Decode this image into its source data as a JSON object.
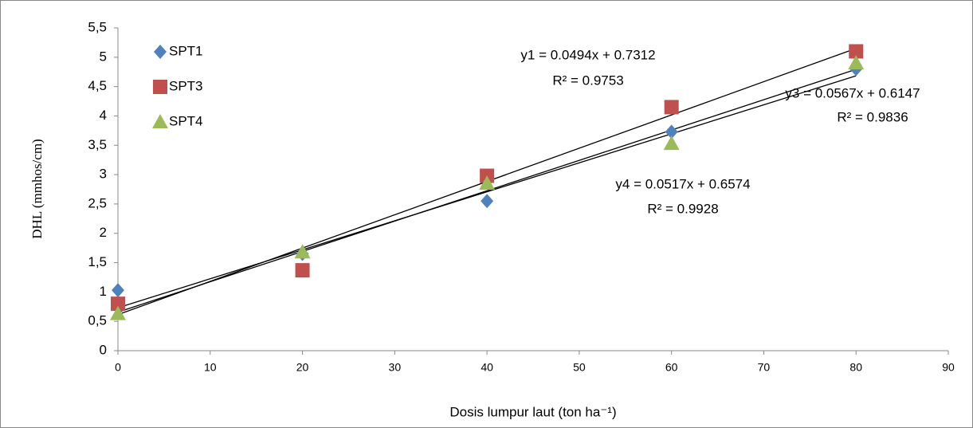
{
  "chart_data": {
    "type": "scatter",
    "x_label": "Dosis lumpur laut (ton ha⁻¹)",
    "y_label": "DHL (mmhos/cm)",
    "xlim": [
      0,
      90
    ],
    "xticks": [
      0,
      10,
      20,
      30,
      40,
      50,
      60,
      70,
      80,
      90
    ],
    "ylim": [
      0,
      5.5
    ],
    "yticks": [
      0,
      {
        "value": 0.5,
        "label": "0,5"
      },
      1,
      {
        "value": 1.5,
        "label": "1,5"
      },
      2,
      {
        "value": 2.5,
        "label": "2,5"
      },
      3,
      {
        "value": 3.5,
        "label": "3,5"
      },
      4,
      {
        "value": 4.5,
        "label": "4,5"
      },
      5,
      {
        "value": 5.5,
        "label": "5,5"
      }
    ],
    "grid": false,
    "legend": "top-left",
    "series": [
      {
        "name": "SPT1",
        "color": "#4f81bd",
        "marker": "diamond",
        "x": [
          0,
          20,
          40,
          60,
          80
        ],
        "values": [
          1.03,
          1.65,
          2.55,
          3.73,
          4.8
        ],
        "trendline": {
          "slope": 0.0494,
          "intercept": 0.7312,
          "label": "y1 = 0.0494x + 0.7312",
          "r2_label": "R² = 0.9753"
        }
      },
      {
        "name": "SPT3",
        "color": "#c0504d",
        "marker": "square",
        "x": [
          0,
          20,
          40,
          60,
          80
        ],
        "values": [
          0.8,
          1.37,
          2.98,
          4.15,
          5.1
        ],
        "trendline": {
          "slope": 0.0567,
          "intercept": 0.6147,
          "label": "y3 = 0.0567x + 0.6147",
          "r2_label": "R² = 0.9836"
        }
      },
      {
        "name": "SPT4",
        "color": "#9bbb59",
        "marker": "triangle",
        "x": [
          0,
          20,
          40,
          60,
          80
        ],
        "values": [
          0.63,
          1.68,
          2.85,
          3.53,
          4.9
        ],
        "trendline": {
          "slope": 0.0517,
          "intercept": 0.6574,
          "label": "y4 = 0.0517x + 0.6574",
          "r2_label": "R² = 0.9928"
        }
      }
    ]
  }
}
